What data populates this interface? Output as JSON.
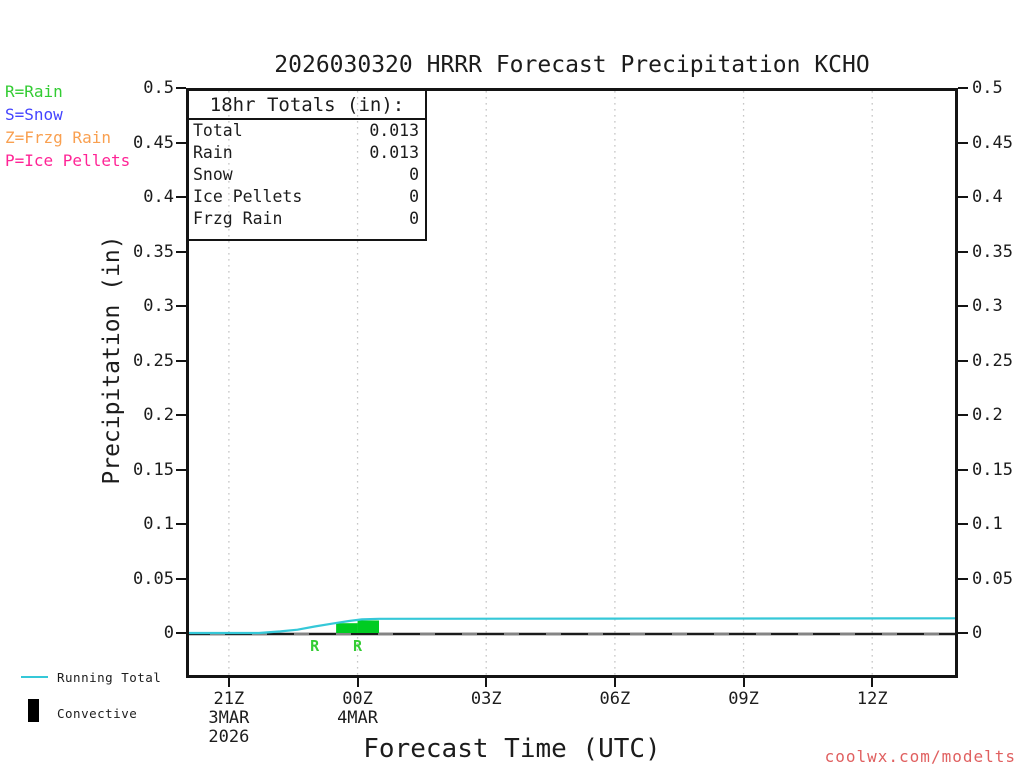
{
  "title": "2026030320 HRRR Forecast Precipitation KCHO",
  "watermark": "coolwx.com/modelts",
  "watermark_color": "#e06060",
  "ptype_legend": [
    {
      "label": "R=Rain",
      "color": "#33cc33"
    },
    {
      "label": "S=Snow",
      "color": "#4444ff"
    },
    {
      "label": "Z=Frzg Rain",
      "color": "#f9a050"
    },
    {
      "label": "P=Ice Pellets",
      "color": "#ff2496"
    }
  ],
  "series_legend": [
    {
      "label": "Running Total",
      "color": "#35c8d8"
    },
    {
      "label": "Convective",
      "color": "#000000"
    }
  ],
  "totals_box": {
    "header": "18hr Totals (in):",
    "rows": [
      {
        "label": "Total",
        "value": "0.013"
      },
      {
        "label": "Rain",
        "value": "0.013"
      },
      {
        "label": "Snow",
        "value": "0"
      },
      {
        "label": "Ice Pellets",
        "value": "0"
      },
      {
        "label": "Frzg Rain",
        "value": "0"
      }
    ]
  },
  "y_axis": {
    "label": "Precipitation (in)",
    "ticks": [
      "0.5",
      "0.45",
      "0.4",
      "0.35",
      "0.3",
      "0.25",
      "0.2",
      "0.15",
      "0.1",
      "0.05",
      "0"
    ]
  },
  "x_axis": {
    "label": "Forecast Time (UTC)",
    "ticks": [
      {
        "label": "21Z",
        "hours_from_start": 1,
        "sub": [
          "3MAR",
          "2026"
        ]
      },
      {
        "label": "00Z",
        "hours_from_start": 4,
        "sub": [
          "4MAR"
        ]
      },
      {
        "label": "03Z",
        "hours_from_start": 7,
        "sub": []
      },
      {
        "label": "06Z",
        "hours_from_start": 10,
        "sub": []
      },
      {
        "label": "09Z",
        "hours_from_start": 13,
        "sub": []
      },
      {
        "label": "12Z",
        "hours_from_start": 16,
        "sub": []
      }
    ]
  },
  "chart_data": {
    "type": "line+bar",
    "title": "2026030320 HRRR Forecast Precipitation KCHO",
    "xlabel": "Forecast Time (UTC)",
    "ylabel": "Precipitation (in)",
    "ylim": [
      0,
      0.5
    ],
    "y_tick_step": 0.05,
    "x_start": "2026-03-03 20Z",
    "x_hours_span": 18,
    "x_tick_labels": [
      "21Z",
      "00Z",
      "03Z",
      "06Z",
      "09Z",
      "12Z"
    ],
    "grid": "vertical-dotted",
    "legend_position": "bottom-left",
    "series": [
      {
        "name": "Running Total",
        "type": "line",
        "color": "#35c8d8",
        "points_hours_vs_inches": [
          [
            0,
            0
          ],
          [
            1.7,
            0
          ],
          [
            2.2,
            0.0015
          ],
          [
            2.6,
            0.003
          ],
          [
            3.0,
            0.006
          ],
          [
            3.4,
            0.0085
          ],
          [
            3.8,
            0.011
          ],
          [
            4.1,
            0.0125
          ],
          [
            4.5,
            0.013
          ],
          [
            10,
            0.0132
          ],
          [
            18,
            0.0135
          ]
        ]
      },
      {
        "name": "Rain (hourly, convective shown black)",
        "type": "bar",
        "color": "#00cc22",
        "bars": [
          {
            "x0_hours": 3.5,
            "x1_hours": 4.0,
            "value": 0.009
          },
          {
            "x0_hours": 4.0,
            "x1_hours": 4.5,
            "value": 0.0115
          }
        ]
      }
    ],
    "ptype_markers": [
      {
        "hour": 3.0,
        "label": "R",
        "color": "#33cc33"
      },
      {
        "hour": 4.0,
        "label": "R",
        "color": "#33cc33"
      }
    ],
    "totals": {
      "total": 0.013,
      "rain": 0.013,
      "snow": 0,
      "ice_pellets": 0,
      "frzg_rain": 0
    }
  }
}
